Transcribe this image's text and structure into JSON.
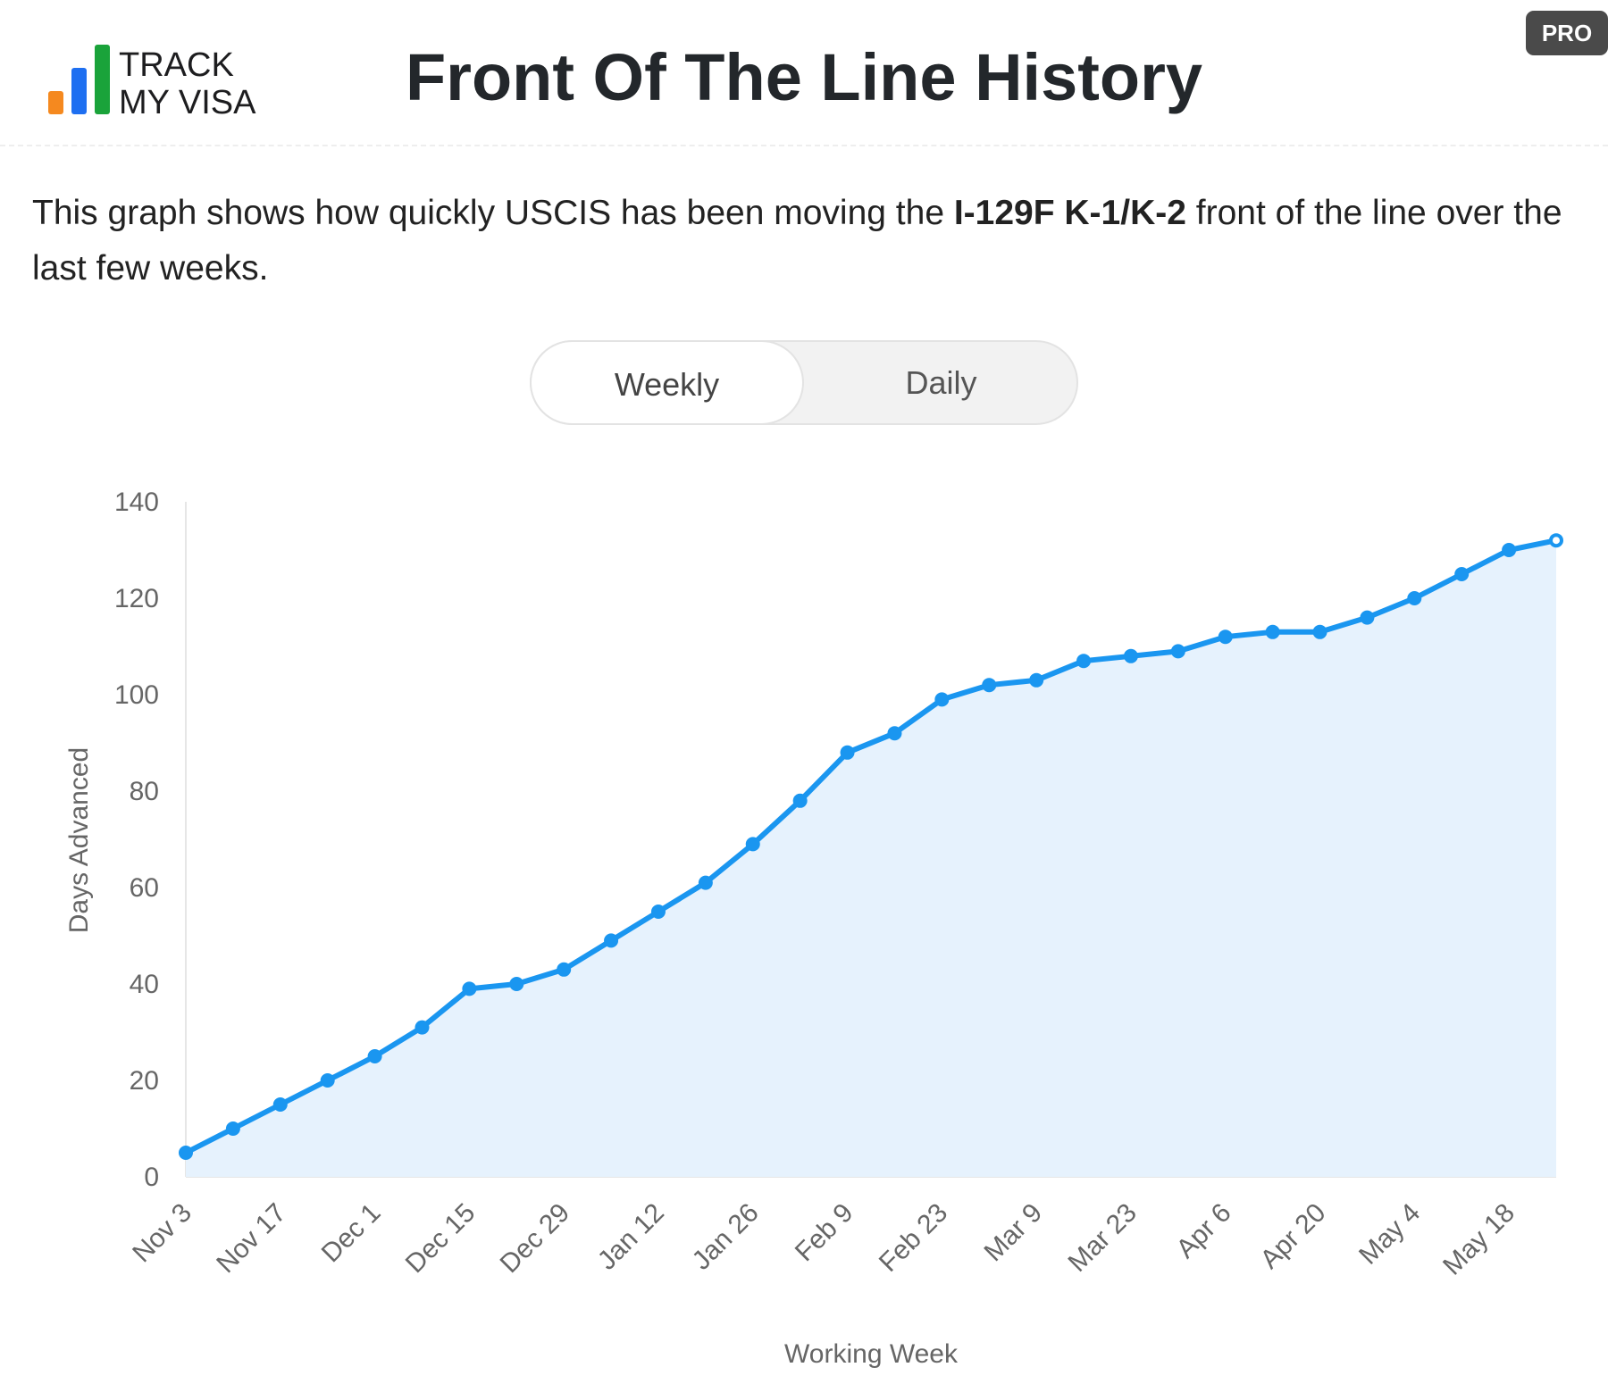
{
  "header": {
    "logo": [
      "TRACK",
      "MY VISA"
    ],
    "title": "Front Of The Line History",
    "badge": "PRO"
  },
  "description": {
    "parts": [
      "This graph shows how quickly USCIS has been moving the ",
      "I-129F K-1/K-2",
      " front of the line over the last few weeks."
    ]
  },
  "toggle": {
    "options": [
      "Weekly",
      "Daily"
    ],
    "active": 0
  },
  "chart_data": {
    "type": "line",
    "x_label": "Working Week",
    "y_label": "Days Advanced",
    "categories": [
      "Nov 3",
      null,
      "Nov 17",
      null,
      "Dec 1",
      null,
      "Dec 15",
      null,
      "Dec 29",
      null,
      "Jan 12",
      null,
      "Jan 26",
      null,
      "Feb 9",
      null,
      "Feb 23",
      null,
      "Mar 9",
      null,
      "Mar 23",
      null,
      "Apr 6",
      null,
      "Apr 20",
      null,
      "May 4",
      null,
      "May 18",
      null
    ],
    "values": [
      5,
      10,
      15,
      20,
      25,
      31,
      39,
      40,
      43,
      49,
      55,
      61,
      69,
      78,
      88,
      92,
      99,
      102,
      103,
      107,
      108,
      109,
      112,
      113,
      113,
      116,
      120,
      125,
      130,
      132
    ],
    "color": "#1a96f0",
    "area_color": "#e6f2fd",
    "ylim": [
      0,
      140
    ],
    "yticks": [
      0,
      20,
      40,
      60,
      80,
      100,
      120,
      140
    ],
    "grid": false
  }
}
